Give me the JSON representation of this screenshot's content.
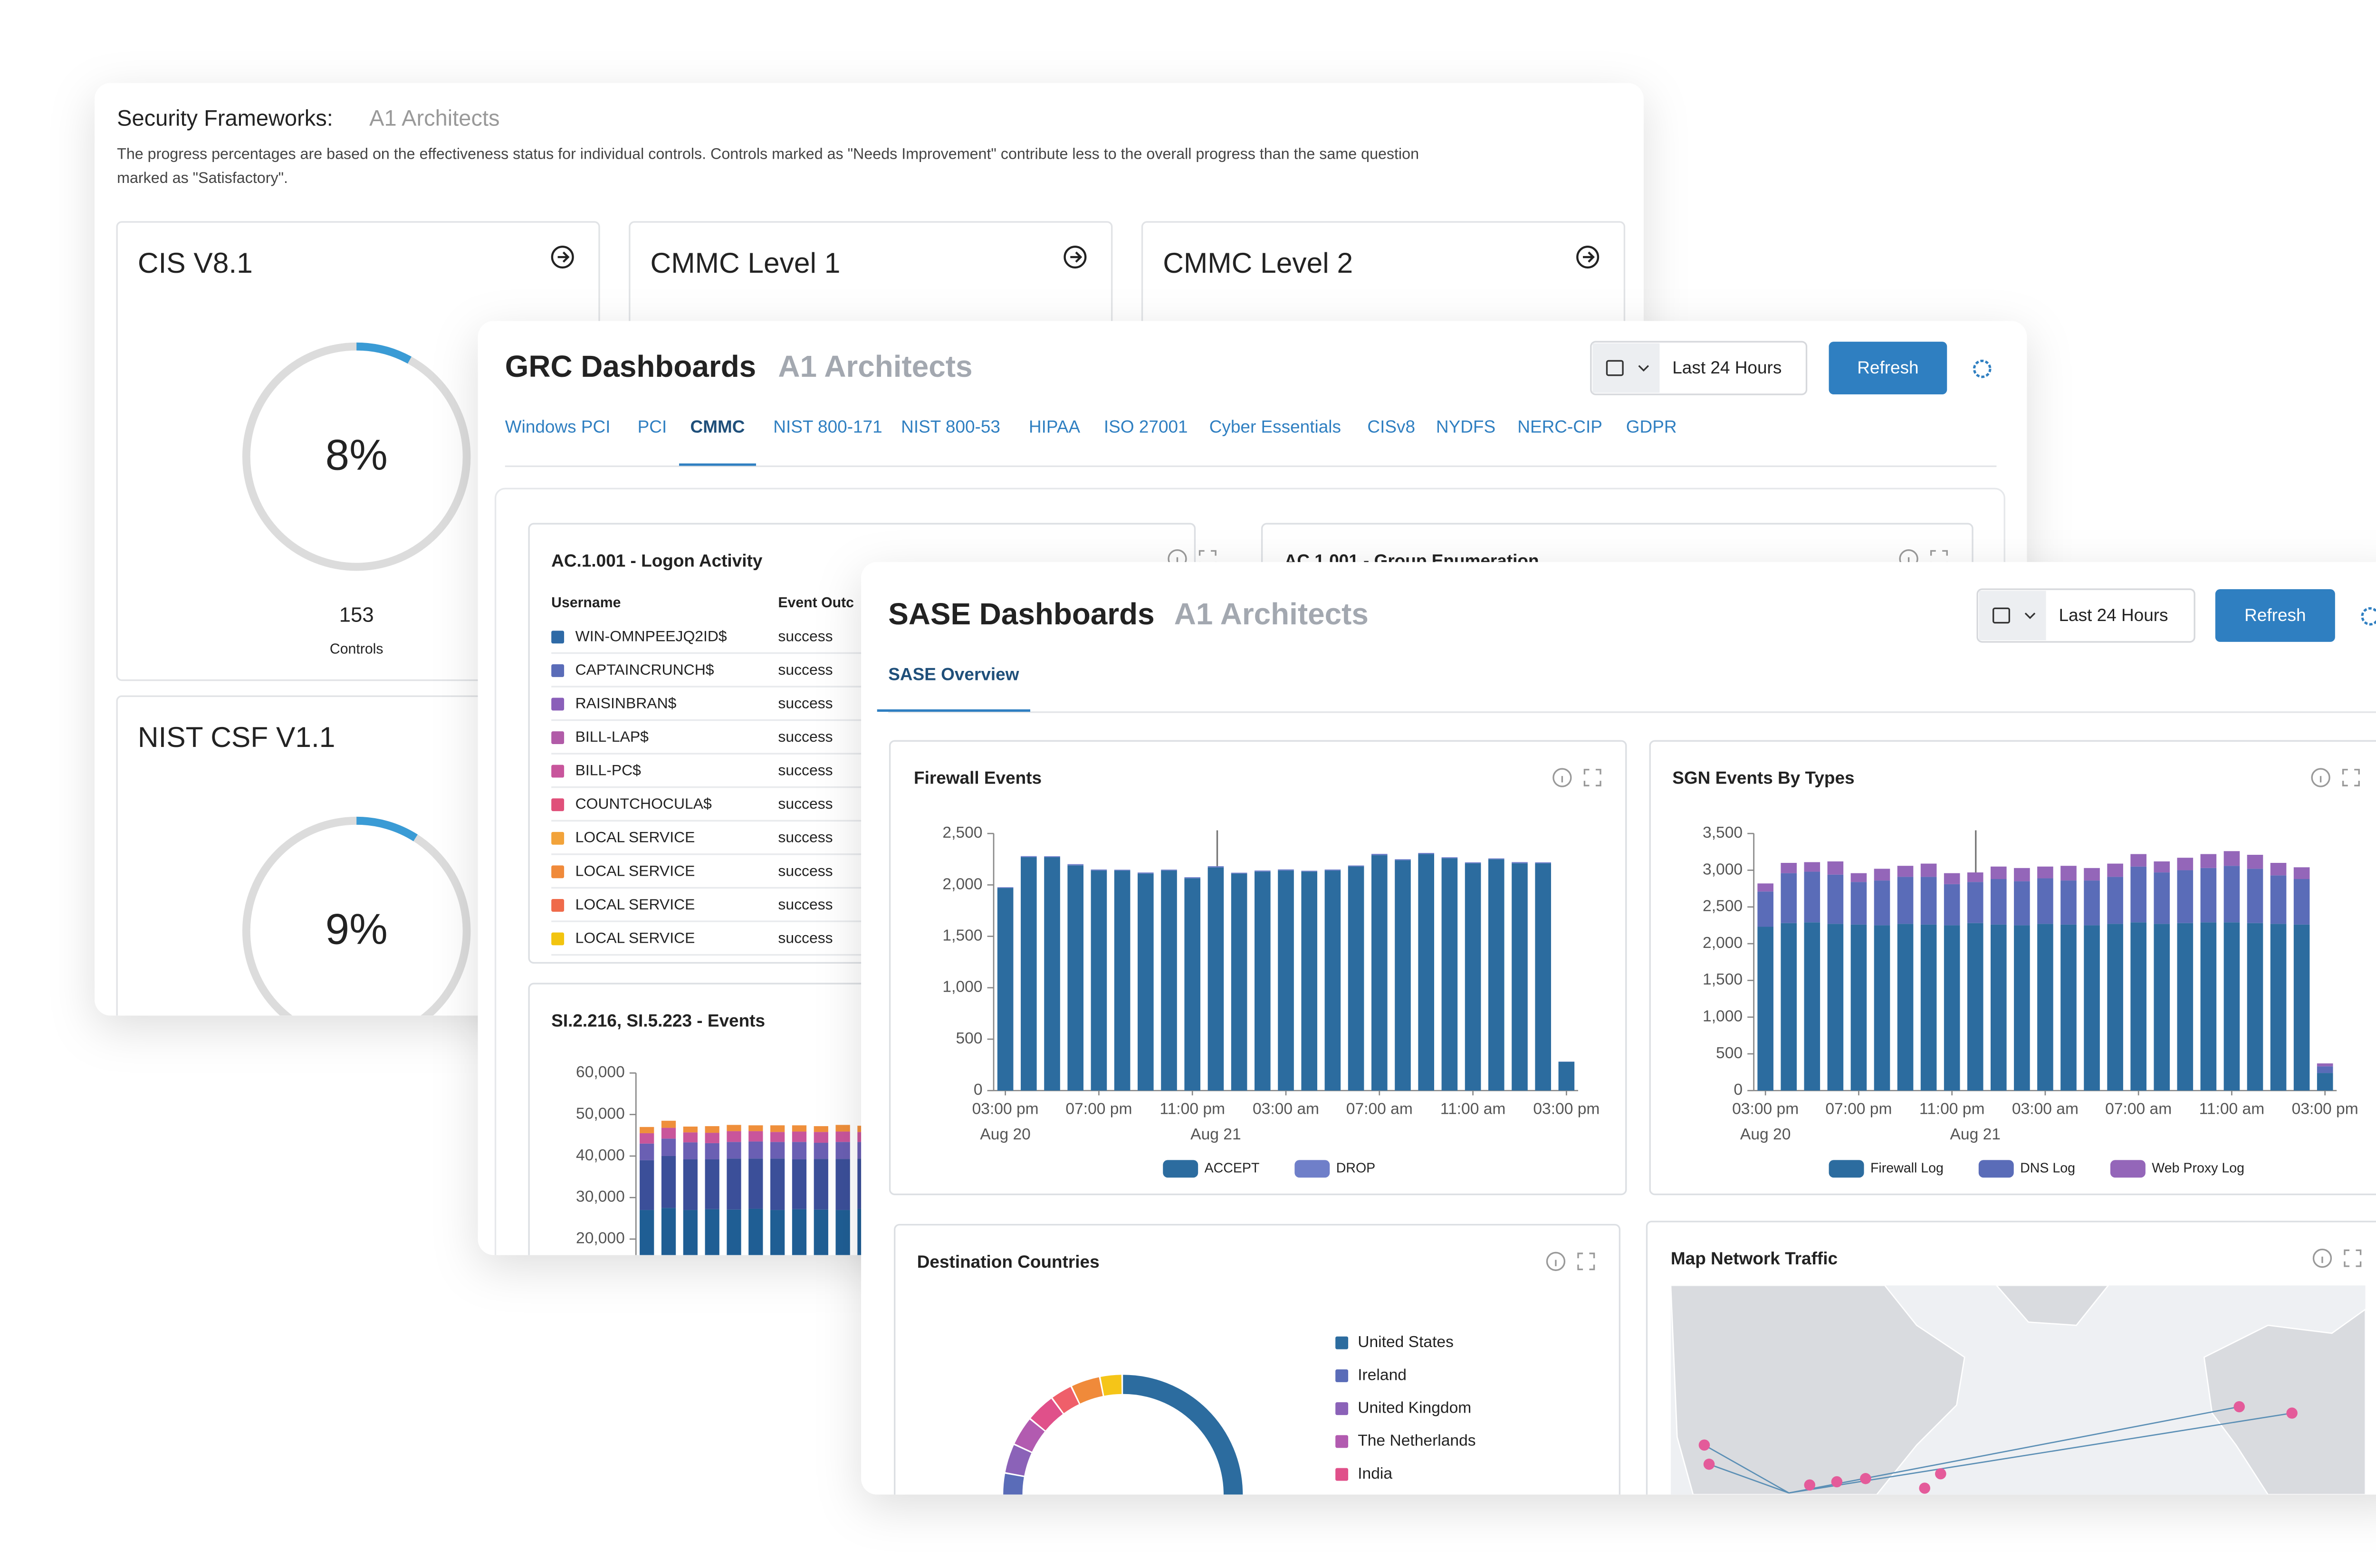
{
  "security_frameworks": {
    "title": "Security Frameworks:",
    "organization": "A1 Architects",
    "description": [
      "The progress percentages are based on the effectiveness status for individual controls. Controls marked as \"Needs Improvement\" contribute less to the overall progress than the same question",
      "marked as \"Satisfactory\"."
    ],
    "cards": [
      {
        "name": "CIS V8.1",
        "progress": 8,
        "progress_label": "8%",
        "controls": 153,
        "controls_label": "Controls"
      },
      {
        "name": "CMMC Level 1"
      },
      {
        "name": "CMMC Level 2"
      },
      {
        "name": "NIST CSF V1.1",
        "progress": 9,
        "progress_label": "9%"
      }
    ]
  },
  "grc": {
    "title": "GRC Dashboards",
    "organization": "A1 Architects",
    "time_range": "Last 24 Hours",
    "refresh": "Refresh",
    "tabs": [
      "Windows PCI",
      "PCI",
      "CMMC",
      "NIST 800-171",
      "NIST 800-53",
      "HIPAA",
      "ISO 27001",
      "Cyber Essentials",
      "CISv8",
      "NYDFS",
      "NERC-CIP",
      "GDPR"
    ],
    "active_tab": 2,
    "logon_activity": {
      "title": "AC.1.001 - Logon Activity",
      "columns": [
        "Username",
        "Event Outc"
      ],
      "rows": [
        {
          "username": "WIN-OMNPEEJQ2ID$",
          "outcome": "success",
          "color": "#2e6aa6"
        },
        {
          "username": "CAPTAINCRUNCH$",
          "outcome": "success",
          "color": "#5a6cb8"
        },
        {
          "username": "RAISINBRAN$",
          "outcome": "success",
          "color": "#8a5fb9"
        },
        {
          "username": "BILL-LAP$",
          "outcome": "success",
          "color": "#b15ba8"
        },
        {
          "username": "BILL-PC$",
          "outcome": "success",
          "color": "#c8559c"
        },
        {
          "username": "COUNTCHOCULA$",
          "outcome": "success",
          "color": "#e0507a"
        },
        {
          "username": "LOCAL SERVICE",
          "outcome": "success",
          "color": "#f2a33a"
        },
        {
          "username": "LOCAL SERVICE",
          "outcome": "success",
          "color": "#f08a3a"
        },
        {
          "username": "LOCAL SERVICE",
          "outcome": "success",
          "color": "#ef6a4a"
        },
        {
          "username": "LOCAL SERVICE",
          "outcome": "success",
          "color": "#f2c40f"
        }
      ]
    },
    "group_enumeration": {
      "title": "AC.1.001 - Group Enumeration"
    },
    "events_chart": {
      "type": "bar",
      "stacked": true,
      "title": "SI.2.216, SI.5.223 - Events",
      "ylim": [
        0,
        60000
      ],
      "yticks": [
        {
          "value": 20000,
          "label": "20,000"
        },
        {
          "value": 30000,
          "label": "30,000"
        },
        {
          "value": 40000,
          "label": "40,000"
        },
        {
          "value": 50000,
          "label": "50,000"
        },
        {
          "value": 60000,
          "label": "60,000"
        }
      ],
      "series": [
        {
          "color": "#1f5e94",
          "values": [
            27000,
            27500,
            27000,
            27200,
            27100,
            27300,
            27000,
            27200,
            27100,
            27000,
            27300
          ]
        },
        {
          "color": "#3b4f99",
          "values": [
            12000,
            12500,
            12200,
            12000,
            12300,
            12100,
            12400,
            12000,
            12200,
            12300,
            12100
          ]
        },
        {
          "color": "#6a5fb3",
          "values": [
            4000,
            4200,
            4100,
            3900,
            4000,
            4100,
            4000,
            4200,
            3900,
            4100,
            4000
          ]
        },
        {
          "color": "#c9559b",
          "values": [
            2500,
            2600,
            2400,
            2500,
            2600,
            2500,
            2400,
            2500,
            2600,
            2500,
            2400
          ]
        },
        {
          "color": "#ef8f3b",
          "values": [
            1500,
            1700,
            1400,
            1600,
            1500,
            1400,
            1600,
            1500,
            1400,
            1600,
            1500
          ]
        }
      ]
    }
  },
  "sase": {
    "title": "SASE Dashboards",
    "organization": "A1 Architects",
    "time_range": "Last 24 Hours",
    "refresh": "Refresh",
    "tabs": [
      "SASE Overview"
    ],
    "active_tab": 0,
    "firewall_events": {
      "type": "bar",
      "stacked": true,
      "title": "Firewall Events",
      "categories": [
        "03:00 pm",
        null,
        null,
        null,
        "07:00 pm",
        null,
        null,
        null,
        "11:00 pm",
        null,
        null,
        null,
        "03:00 am",
        null,
        null,
        null,
        "07:00 am",
        null,
        null,
        null,
        "11:00 am",
        null,
        null,
        null,
        "03:00 pm"
      ],
      "dates": [
        "Aug 20",
        null,
        null,
        null,
        null,
        null,
        null,
        null,
        null,
        "Aug 21",
        null,
        null,
        null,
        null,
        null,
        null,
        null,
        null,
        null,
        null,
        null,
        null,
        null,
        null,
        null
      ],
      "ylim": [
        0,
        2500
      ],
      "yticks": [
        0,
        500,
        {
          "value": 1000,
          "label": "1,000"
        },
        {
          "value": 1500,
          "label": "1,500"
        },
        {
          "value": 2000,
          "label": "2,000"
        },
        {
          "value": 2500,
          "label": "2,500"
        }
      ],
      "series": [
        {
          "name": "ACCEPT",
          "color": "#2c6c9f",
          "values": [
            1970,
            2270,
            2270,
            2190,
            2140,
            2140,
            2110,
            2140,
            2065,
            2170,
            2110,
            2130,
            2140,
            2130,
            2140,
            2180,
            2290,
            2240,
            2300,
            2260,
            2210,
            2250,
            2210,
            2210,
            280
          ]
        },
        {
          "name": "DROP",
          "color": "#6f7fc9",
          "values": [
            8,
            10,
            9,
            12,
            10,
            8,
            11,
            9,
            10,
            12,
            9,
            10,
            11,
            8,
            10,
            9,
            12,
            10,
            11,
            9,
            10,
            8,
            12,
            10,
            2
          ]
        }
      ]
    },
    "sgn_events": {
      "type": "bar",
      "stacked": true,
      "title": "SGN Events By Types",
      "categories": [
        "03:00 pm",
        null,
        null,
        null,
        "07:00 pm",
        null,
        null,
        null,
        "11:00 pm",
        null,
        null,
        null,
        "03:00 am",
        null,
        null,
        null,
        "07:00 am",
        null,
        null,
        null,
        "11:00 am",
        null,
        null,
        null,
        "03:00 pm"
      ],
      "dates": [
        "Aug 20",
        null,
        null,
        null,
        null,
        null,
        null,
        null,
        null,
        "Aug 21",
        null,
        null,
        null,
        null,
        null,
        null,
        null,
        null,
        null,
        null,
        null,
        null,
        null,
        null,
        null
      ],
      "ylim": [
        0,
        3500
      ],
      "yticks": [
        0,
        500,
        {
          "value": 1000,
          "label": "1,000"
        },
        {
          "value": 1500,
          "label": "1,500"
        },
        {
          "value": 2000,
          "label": "2,000"
        },
        {
          "value": 2500,
          "label": "2,500"
        },
        {
          "value": 3000,
          "label": "3,000"
        },
        {
          "value": 3500,
          "label": "3,500"
        }
      ],
      "series": [
        {
          "name": "Firewall Log",
          "color": "#2c6c9f",
          "values": [
            2230,
            2280,
            2290,
            2270,
            2260,
            2250,
            2270,
            2260,
            2250,
            2280,
            2260,
            2250,
            2270,
            2260,
            2250,
            2270,
            2290,
            2270,
            2280,
            2290,
            2290,
            2280,
            2270,
            2260,
            240
          ]
        },
        {
          "name": "DNS Log",
          "color": "#5a6cb8",
          "values": [
            480,
            680,
            690,
            670,
            580,
            610,
            640,
            650,
            560,
            560,
            620,
            600,
            620,
            600,
            610,
            640,
            760,
            700,
            720,
            740,
            770,
            740,
            660,
            620,
            90
          ]
        },
        {
          "name": "Web Proxy Log",
          "color": "#9466b9",
          "values": [
            110,
            140,
            130,
            180,
            120,
            160,
            150,
            180,
            150,
            130,
            170,
            180,
            160,
            200,
            170,
            180,
            170,
            150,
            170,
            190,
            200,
            190,
            170,
            160,
            40
          ]
        }
      ]
    },
    "destination_countries": {
      "type": "pie",
      "donut": true,
      "title": "Destination Countries",
      "categories": [
        "United States",
        "Ireland",
        "United Kingdom",
        "The Netherlands",
        "India",
        null,
        null,
        null
      ],
      "values": [
        74,
        4,
        4,
        4,
        4,
        3,
        4,
        3
      ],
      "colors": [
        "#2c6c9f",
        "#5a6cb8",
        "#8b62b8",
        "#b25bb0",
        "#e0508a",
        "#ef5f6a",
        "#f08a3a",
        "#f5c518"
      ]
    },
    "network_map": {
      "title": "Map Network Traffic"
    }
  }
}
